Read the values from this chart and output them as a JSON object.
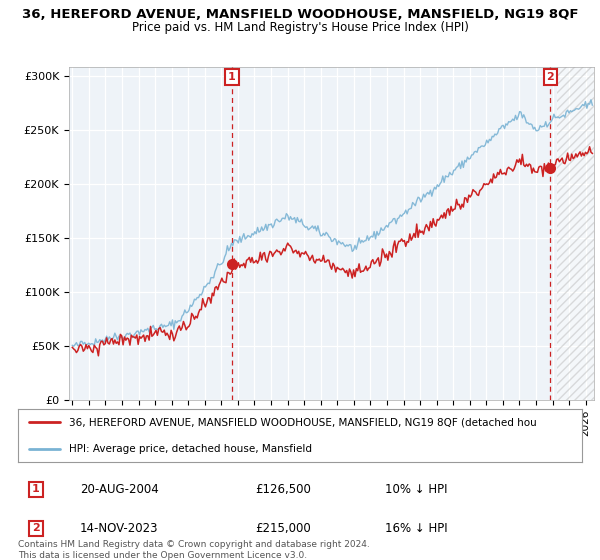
{
  "title1": "36, HEREFORD AVENUE, MANSFIELD WOODHOUSE, MANSFIELD, NG19 8QF",
  "title2": "Price paid vs. HM Land Registry's House Price Index (HPI)",
  "legend_line1": "36, HEREFORD AVENUE, MANSFIELD WOODHOUSE, MANSFIELD, NG19 8QF (detached hou",
  "legend_line2": "HPI: Average price, detached house, Mansfield",
  "annotation1_date": "20-AUG-2004",
  "annotation1_price": "£126,500",
  "annotation1_hpi": "10% ↓ HPI",
  "annotation2_date": "14-NOV-2023",
  "annotation2_price": "£215,000",
  "annotation2_hpi": "16% ↓ HPI",
  "copyright": "Contains HM Land Registry data © Crown copyright and database right 2024.\nThis data is licensed under the Open Government Licence v3.0.",
  "ylabel_ticks": [
    "£0",
    "£50K",
    "£100K",
    "£150K",
    "£200K",
    "£250K",
    "£300K"
  ],
  "ytick_vals": [
    0,
    50000,
    100000,
    150000,
    200000,
    250000,
    300000
  ],
  "ylim": [
    0,
    308000
  ],
  "xlim_start": 1994.8,
  "xlim_end": 2026.5,
  "sale1_x": 2004.64,
  "sale1_y": 126500,
  "sale2_x": 2023.87,
  "sale2_y": 215000,
  "background_color": "#ffffff",
  "plot_bg_color": "#eef3f8",
  "grid_color": "#ffffff",
  "hpi_color": "#7ab3d4",
  "price_color": "#cc2222",
  "hatch_start": 2024.25
}
